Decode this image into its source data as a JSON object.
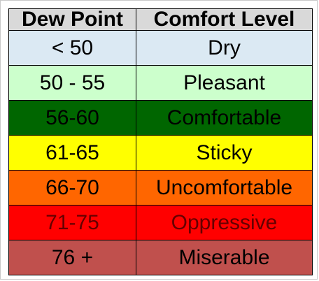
{
  "table": {
    "headers": [
      "Dew Point",
      "Comfort Level"
    ],
    "header_color": "#d9d9d9",
    "rows": [
      {
        "dew_point": "< 50",
        "comfort": "Dry",
        "bg": "#dbe9f3",
        "fg": "#000000"
      },
      {
        "dew_point": "50 - 55",
        "comfort": "Pleasant",
        "bg": "#ccffcc",
        "fg": "#000000"
      },
      {
        "dew_point": "56-60",
        "comfort": "Comfortable",
        "bg": "#006600",
        "fg": "#000000"
      },
      {
        "dew_point": "61-65",
        "comfort": "Sticky",
        "bg": "#ffff00",
        "fg": "#000000"
      },
      {
        "dew_point": "66-70",
        "comfort": "Uncomfortable",
        "bg": "#ff6600",
        "fg": "#000000"
      },
      {
        "dew_point": "71-75",
        "comfort": "Oppressive",
        "bg": "#ff0000",
        "fg": "#660000"
      },
      {
        "dew_point": "76 +",
        "comfort": "Miserable",
        "bg": "#c0504d",
        "fg": "#000000"
      }
    ]
  }
}
